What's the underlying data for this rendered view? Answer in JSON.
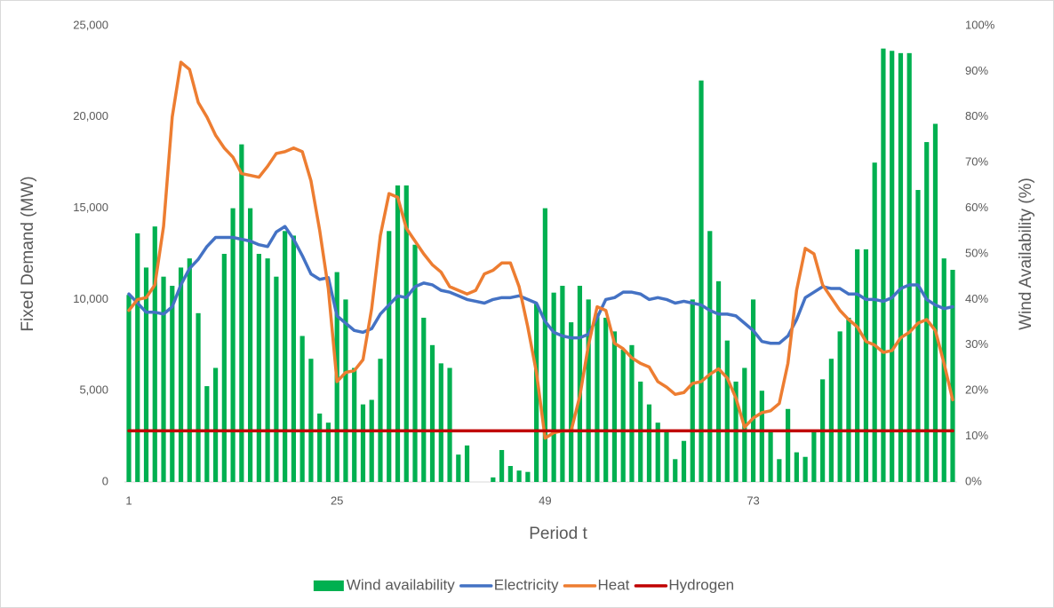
{
  "chart_data": {
    "type": "combo",
    "x_label": "Period t",
    "y_label": "Fixed Demand (MW)",
    "y2_label": "Wind Availability (%)",
    "categories": [
      "1",
      null,
      null,
      null,
      null,
      null,
      null,
      null,
      null,
      null,
      null,
      null,
      null,
      null,
      null,
      null,
      null,
      null,
      null,
      null,
      null,
      null,
      null,
      null,
      "25",
      null,
      null,
      null,
      null,
      null,
      null,
      null,
      null,
      null,
      null,
      null,
      null,
      null,
      null,
      null,
      null,
      null,
      null,
      null,
      null,
      null,
      null,
      null,
      "49",
      null,
      null,
      null,
      null,
      null,
      null,
      null,
      null,
      null,
      null,
      null,
      null,
      null,
      null,
      null,
      null,
      null,
      null,
      null,
      null,
      null,
      null,
      null,
      "73",
      null,
      null,
      null,
      null,
      null,
      null,
      null,
      null,
      null,
      null,
      null,
      null,
      null,
      null,
      null,
      null,
      null,
      null,
      null,
      null,
      null,
      null,
      null
    ],
    "ylim": [
      0,
      25000
    ],
    "yticks": [
      0,
      {
        "value": 5000,
        "label": "5,000"
      },
      {
        "value": 10000,
        "label": "10,000"
      },
      {
        "value": 15000,
        "label": "15,000"
      },
      {
        "value": 20000,
        "label": "20,000"
      },
      {
        "value": 25000,
        "label": "25,000"
      }
    ],
    "y2lim": [
      0,
      100
    ],
    "y2ticks": [
      {
        "value": 0,
        "label": "0%"
      },
      {
        "value": 10,
        "label": "10%"
      },
      {
        "value": 20,
        "label": "20%"
      },
      {
        "value": 30,
        "label": "30%"
      },
      {
        "value": 40,
        "label": "40%"
      },
      {
        "value": 50,
        "label": "50%"
      },
      {
        "value": 60,
        "label": "60%"
      },
      {
        "value": 70,
        "label": "70%"
      },
      {
        "value": 80,
        "label": "80%"
      },
      {
        "value": 90,
        "label": "90%"
      },
      {
        "value": 100,
        "label": "100%"
      }
    ],
    "legend": "bottom",
    "series": [
      {
        "name": "Wind availability",
        "type": "bar",
        "axis": "y2",
        "color": "#00b050",
        "values": [
          41,
          54.5,
          47,
          56,
          45,
          43,
          47,
          49,
          37,
          21,
          25,
          50,
          60,
          74,
          60,
          50,
          49,
          45,
          55,
          54,
          32,
          27,
          15,
          13,
          46,
          40,
          25,
          17,
          18,
          27,
          55,
          65,
          65,
          52,
          36,
          30,
          26,
          25,
          6,
          8,
          0,
          0,
          1,
          7,
          3.5,
          2.5,
          2.2,
          39,
          60,
          41.5,
          43,
          35,
          43,
          40,
          37,
          36,
          33,
          29,
          30,
          22,
          17,
          13,
          11,
          5,
          9,
          40,
          88,
          55,
          44,
          31,
          22,
          25,
          40,
          20,
          11,
          5,
          16,
          6.5,
          5.5,
          11,
          22.5,
          27,
          33,
          36,
          51,
          51,
          70,
          95,
          94.5,
          94,
          94,
          64,
          74.5,
          78.5,
          49,
          46.5
        ]
      },
      {
        "name": "Electricity",
        "type": "line",
        "color": "#4472c4",
        "values": [
          10300,
          9800,
          9300,
          9300,
          9200,
          9600,
          10800,
          11700,
          12200,
          12900,
          13400,
          13400,
          13400,
          13300,
          13200,
          13000,
          12900,
          13700,
          14000,
          13300,
          12400,
          11400,
          11100,
          11200,
          9100,
          8700,
          8300,
          8200,
          8400,
          9200,
          9700,
          10200,
          10100,
          10700,
          10900,
          10800,
          10500,
          10400,
          10200,
          10000,
          9900,
          9800,
          10000,
          10100,
          10100,
          10200,
          10000,
          9800,
          8800,
          8200,
          8000,
          7900,
          7900,
          8100,
          9000,
          10000,
          10100,
          10400,
          10400,
          10300,
          10000,
          10100,
          10000,
          9800,
          9900,
          9800,
          9700,
          9400,
          9200,
          9200,
          9100,
          8700,
          8300,
          7700,
          7600,
          7600,
          8000,
          8900,
          10100,
          10400,
          10700,
          10600,
          10600,
          10300,
          10300,
          10000,
          10000,
          9900,
          10100,
          10600,
          10800,
          10800,
          10000,
          9700,
          9500,
          9600
        ]
      },
      {
        "name": "Heat",
        "type": "line",
        "color": "#ed7d31",
        "values": [
          9400,
          10000,
          10100,
          10800,
          14000,
          20000,
          23000,
          22600,
          20800,
          20000,
          19000,
          18300,
          17800,
          16900,
          16800,
          16700,
          17300,
          18000,
          18100,
          18300,
          18100,
          16500,
          13800,
          10600,
          5500,
          6000,
          6100,
          6700,
          9500,
          13500,
          15800,
          15600,
          13900,
          13200,
          12500,
          11900,
          11500,
          10700,
          10500,
          10300,
          10500,
          11400,
          11600,
          12000,
          12000,
          10700,
          8500,
          6000,
          2400,
          2700,
          2800,
          2800,
          4700,
          7500,
          9600,
          9400,
          7600,
          7300,
          6800,
          6500,
          6300,
          5500,
          5200,
          4800,
          4900,
          5400,
          5500,
          5900,
          6200,
          5700,
          4600,
          3000,
          3500,
          3800,
          3900,
          4300,
          6500,
          10500,
          12800,
          12500,
          10800,
          10100,
          9400,
          8900,
          8500,
          7700,
          7500,
          7100,
          7200,
          7900,
          8200,
          8700,
          8900,
          8300,
          6500,
          4500
        ]
      },
      {
        "name": "Hydrogen",
        "type": "line",
        "color": "#c00000",
        "values": [
          2800,
          2800,
          2800,
          2800,
          2800,
          2800,
          2800,
          2800,
          2800,
          2800,
          2800,
          2800,
          2800,
          2800,
          2800,
          2800,
          2800,
          2800,
          2800,
          2800,
          2800,
          2800,
          2800,
          2800,
          2800,
          2800,
          2800,
          2800,
          2800,
          2800,
          2800,
          2800,
          2800,
          2800,
          2800,
          2800,
          2800,
          2800,
          2800,
          2800,
          2800,
          2800,
          2800,
          2800,
          2800,
          2800,
          2800,
          2800,
          2800,
          2800,
          2800,
          2800,
          2800,
          2800,
          2800,
          2800,
          2800,
          2800,
          2800,
          2800,
          2800,
          2800,
          2800,
          2800,
          2800,
          2800,
          2800,
          2800,
          2800,
          2800,
          2800,
          2800,
          2800,
          2800,
          2800,
          2800,
          2800,
          2800,
          2800,
          2800,
          2800,
          2800,
          2800,
          2800,
          2800,
          2800,
          2800,
          2800,
          2800,
          2800,
          2800,
          2800,
          2800,
          2800,
          2800,
          2800
        ]
      }
    ]
  }
}
